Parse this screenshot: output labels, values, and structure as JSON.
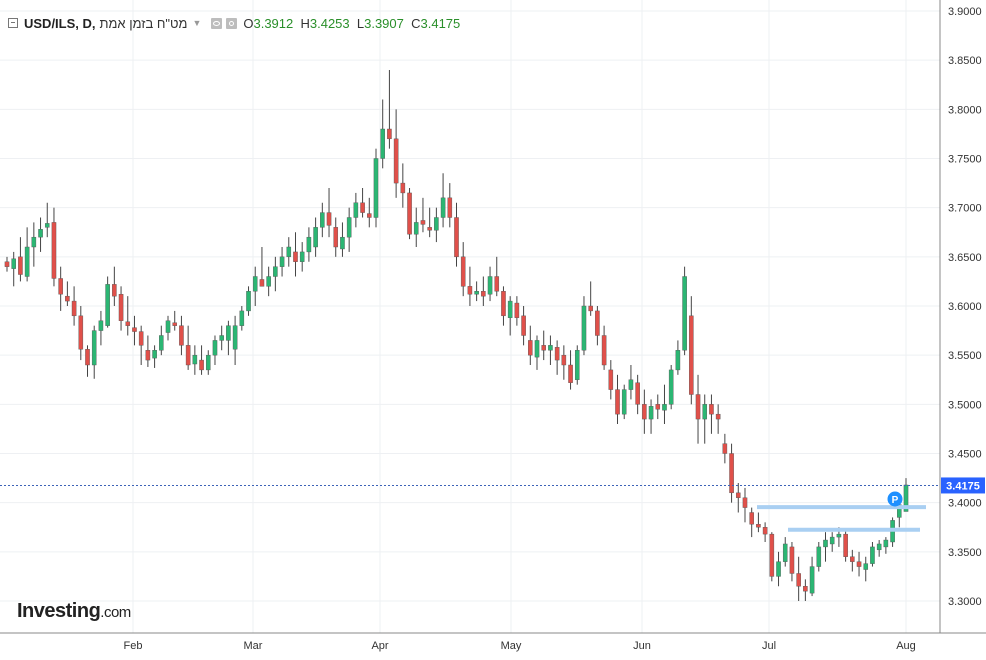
{
  "header": {
    "symbol": "USD/ILS, D,",
    "name": "מט\"ח בזמן אמת",
    "open_label": "O",
    "open": "3.3912",
    "high_label": "H",
    "high": "3.4253",
    "low_label": "L",
    "low": "3.3907",
    "close_label": "C",
    "close": "3.4175"
  },
  "logo": {
    "main": "Investing",
    "suffix": ".com"
  },
  "colors": {
    "up": "#2bb673",
    "down": "#e0504a",
    "wick": "#444444",
    "sr_line": "#a9cff2",
    "price_line": "#3d63b8",
    "price_tag": "#2962ff",
    "marker": "#1e90ff"
  },
  "chart_data": {
    "type": "candlestick",
    "x_tick_labels": [
      "Feb",
      "Mar",
      "Apr",
      "May",
      "Jun",
      "Jul",
      "Aug"
    ],
    "y_tick_labels": [
      "3.9000",
      "3.8500",
      "3.8000",
      "3.7500",
      "3.7000",
      "3.6500",
      "3.6000",
      "3.5500",
      "3.5000",
      "3.4500",
      "3.4000",
      "3.3500",
      "3.3000"
    ],
    "ylim": [
      3.275,
      3.905
    ],
    "last_price": "3.4175",
    "marker_label": "P",
    "support_levels": [
      3.3955,
      3.3725
    ],
    "candles": [
      [
        3.645,
        3.65,
        3.635,
        3.64
      ],
      [
        3.638,
        3.655,
        3.62,
        3.648
      ],
      [
        3.65,
        3.67,
        3.625,
        3.632
      ],
      [
        3.63,
        3.68,
        3.625,
        3.66
      ],
      [
        3.66,
        3.685,
        3.64,
        3.67
      ],
      [
        3.67,
        3.69,
        3.655,
        3.678
      ],
      [
        3.68,
        3.705,
        3.67,
        3.684
      ],
      [
        3.685,
        3.7,
        3.62,
        3.628
      ],
      [
        3.628,
        3.64,
        3.595,
        3.612
      ],
      [
        3.61,
        3.625,
        3.6,
        3.605
      ],
      [
        3.605,
        3.62,
        3.58,
        3.59
      ],
      [
        3.59,
        3.6,
        3.545,
        3.556
      ],
      [
        3.556,
        3.56,
        3.528,
        3.54
      ],
      [
        3.54,
        3.58,
        3.526,
        3.575
      ],
      [
        3.575,
        3.595,
        3.56,
        3.585
      ],
      [
        3.58,
        3.63,
        3.578,
        3.622
      ],
      [
        3.622,
        3.64,
        3.6,
        3.61
      ],
      [
        3.612,
        3.62,
        3.575,
        3.585
      ],
      [
        3.584,
        3.61,
        3.57,
        3.58
      ],
      [
        3.578,
        3.59,
        3.56,
        3.574
      ],
      [
        3.574,
        3.58,
        3.54,
        3.56
      ],
      [
        3.555,
        3.57,
        3.538,
        3.545
      ],
      [
        3.547,
        3.56,
        3.537,
        3.555
      ],
      [
        3.555,
        3.58,
        3.55,
        3.57
      ],
      [
        3.573,
        3.59,
        3.565,
        3.585
      ],
      [
        3.583,
        3.595,
        3.575,
        3.58
      ],
      [
        3.58,
        3.59,
        3.55,
        3.56
      ],
      [
        3.56,
        3.58,
        3.535,
        3.54
      ],
      [
        3.541,
        3.56,
        3.53,
        3.55
      ],
      [
        3.545,
        3.56,
        3.53,
        3.535
      ],
      [
        3.535,
        3.555,
        3.53,
        3.55
      ],
      [
        3.55,
        3.57,
        3.54,
        3.565
      ],
      [
        3.565,
        3.58,
        3.555,
        3.57
      ],
      [
        3.565,
        3.585,
        3.55,
        3.58
      ],
      [
        3.556,
        3.59,
        3.54,
        3.58
      ],
      [
        3.58,
        3.6,
        3.575,
        3.595
      ],
      [
        3.595,
        3.62,
        3.59,
        3.615
      ],
      [
        3.615,
        3.64,
        3.6,
        3.63
      ],
      [
        3.627,
        3.66,
        3.62,
        3.62
      ],
      [
        3.62,
        3.64,
        3.61,
        3.63
      ],
      [
        3.63,
        3.65,
        3.615,
        3.64
      ],
      [
        3.64,
        3.66,
        3.63,
        3.65
      ],
      [
        3.65,
        3.67,
        3.64,
        3.66
      ],
      [
        3.655,
        3.675,
        3.63,
        3.645
      ],
      [
        3.645,
        3.665,
        3.635,
        3.655
      ],
      [
        3.655,
        3.68,
        3.645,
        3.67
      ],
      [
        3.66,
        3.69,
        3.65,
        3.68
      ],
      [
        3.68,
        3.705,
        3.67,
        3.695
      ],
      [
        3.695,
        3.72,
        3.67,
        3.682
      ],
      [
        3.68,
        3.69,
        3.65,
        3.66
      ],
      [
        3.658,
        3.685,
        3.65,
        3.67
      ],
      [
        3.67,
        3.7,
        3.655,
        3.69
      ],
      [
        3.69,
        3.715,
        3.68,
        3.705
      ],
      [
        3.705,
        3.72,
        3.69,
        3.695
      ],
      [
        3.694,
        3.71,
        3.68,
        3.69
      ],
      [
        3.69,
        3.76,
        3.68,
        3.75
      ],
      [
        3.75,
        3.81,
        3.74,
        3.78
      ],
      [
        3.78,
        3.84,
        3.76,
        3.77
      ],
      [
        3.77,
        3.8,
        3.71,
        3.725
      ],
      [
        3.725,
        3.745,
        3.7,
        3.715
      ],
      [
        3.715,
        3.72,
        3.668,
        3.673
      ],
      [
        3.673,
        3.7,
        3.66,
        3.685
      ],
      [
        3.687,
        3.71,
        3.675,
        3.683
      ],
      [
        3.68,
        3.7,
        3.67,
        3.677
      ],
      [
        3.677,
        3.7,
        3.665,
        3.69
      ],
      [
        3.69,
        3.735,
        3.68,
        3.71
      ],
      [
        3.71,
        3.725,
        3.68,
        3.69
      ],
      [
        3.69,
        3.705,
        3.64,
        3.65
      ],
      [
        3.65,
        3.665,
        3.61,
        3.62
      ],
      [
        3.62,
        3.64,
        3.6,
        3.612
      ],
      [
        3.612,
        3.625,
        3.605,
        3.615
      ],
      [
        3.615,
        3.63,
        3.6,
        3.61
      ],
      [
        3.612,
        3.64,
        3.605,
        3.63
      ],
      [
        3.63,
        3.65,
        3.61,
        3.615
      ],
      [
        3.615,
        3.62,
        3.58,
        3.59
      ],
      [
        3.588,
        3.61,
        3.57,
        3.605
      ],
      [
        3.603,
        3.61,
        3.58,
        3.588
      ],
      [
        3.59,
        3.6,
        3.56,
        3.57
      ],
      [
        3.565,
        3.58,
        3.54,
        3.55
      ],
      [
        3.548,
        3.57,
        3.535,
        3.565
      ],
      [
        3.56,
        3.575,
        3.545,
        3.555
      ],
      [
        3.555,
        3.57,
        3.54,
        3.56
      ],
      [
        3.558,
        3.565,
        3.53,
        3.545
      ],
      [
        3.55,
        3.56,
        3.525,
        3.54
      ],
      [
        3.54,
        3.555,
        3.515,
        3.522
      ],
      [
        3.525,
        3.56,
        3.52,
        3.555
      ],
      [
        3.555,
        3.61,
        3.55,
        3.6
      ],
      [
        3.6,
        3.625,
        3.59,
        3.595
      ],
      [
        3.595,
        3.6,
        3.56,
        3.57
      ],
      [
        3.57,
        3.58,
        3.535,
        3.54
      ],
      [
        3.535,
        3.545,
        3.505,
        3.515
      ],
      [
        3.515,
        3.53,
        3.48,
        3.49
      ],
      [
        3.49,
        3.52,
        3.485,
        3.515
      ],
      [
        3.515,
        3.54,
        3.505,
        3.525
      ],
      [
        3.522,
        3.53,
        3.49,
        3.5
      ],
      [
        3.5,
        3.515,
        3.47,
        3.485
      ],
      [
        3.485,
        3.505,
        3.47,
        3.498
      ],
      [
        3.5,
        3.51,
        3.485,
        3.495
      ],
      [
        3.494,
        3.52,
        3.48,
        3.5
      ],
      [
        3.5,
        3.54,
        3.495,
        3.535
      ],
      [
        3.535,
        3.565,
        3.53,
        3.555
      ],
      [
        3.555,
        3.64,
        3.55,
        3.63
      ],
      [
        3.59,
        3.61,
        3.5,
        3.51
      ],
      [
        3.51,
        3.53,
        3.46,
        3.485
      ],
      [
        3.485,
        3.51,
        3.46,
        3.5
      ],
      [
        3.5,
        3.51,
        3.47,
        3.49
      ],
      [
        3.49,
        3.5,
        3.47,
        3.485
      ],
      [
        3.46,
        3.47,
        3.44,
        3.45
      ],
      [
        3.45,
        3.46,
        3.4,
        3.41
      ],
      [
        3.41,
        3.42,
        3.39,
        3.405
      ],
      [
        3.405,
        3.415,
        3.38,
        3.395
      ],
      [
        3.39,
        3.395,
        3.365,
        3.378
      ],
      [
        3.378,
        3.39,
        3.37,
        3.375
      ],
      [
        3.375,
        3.38,
        3.36,
        3.368
      ],
      [
        3.368,
        3.37,
        3.32,
        3.325
      ],
      [
        3.325,
        3.35,
        3.315,
        3.34
      ],
      [
        3.34,
        3.365,
        3.335,
        3.358
      ],
      [
        3.355,
        3.36,
        3.32,
        3.328
      ],
      [
        3.328,
        3.345,
        3.3,
        3.315
      ],
      [
        3.315,
        3.322,
        3.3,
        3.31
      ],
      [
        3.308,
        3.345,
        3.305,
        3.335
      ],
      [
        3.335,
        3.36,
        3.33,
        3.355
      ],
      [
        3.355,
        3.37,
        3.34,
        3.362
      ],
      [
        3.358,
        3.37,
        3.35,
        3.365
      ],
      [
        3.365,
        3.375,
        3.355,
        3.368
      ],
      [
        3.368,
        3.372,
        3.34,
        3.345
      ],
      [
        3.345,
        3.352,
        3.33,
        3.34
      ],
      [
        3.34,
        3.35,
        3.325,
        3.335
      ],
      [
        3.332,
        3.345,
        3.32,
        3.338
      ],
      [
        3.338,
        3.36,
        3.335,
        3.355
      ],
      [
        3.352,
        3.362,
        3.345,
        3.358
      ],
      [
        3.355,
        3.365,
        3.348,
        3.362
      ],
      [
        3.36,
        3.385,
        3.355,
        3.382
      ],
      [
        3.385,
        3.4,
        3.375,
        3.398
      ],
      [
        3.391,
        3.425,
        3.391,
        3.418
      ]
    ]
  }
}
